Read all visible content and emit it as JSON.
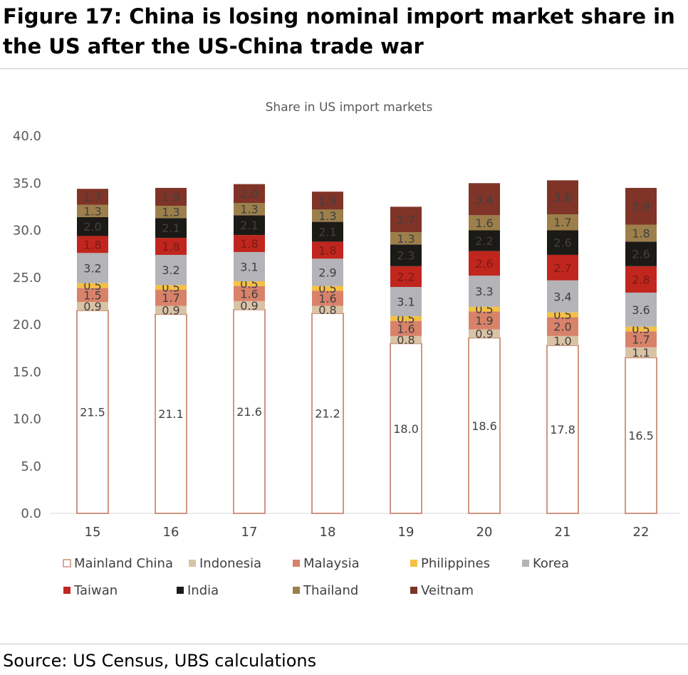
{
  "figure": {
    "title": "Figure 17: China is losing nominal import market share in the US after the US-China trade war",
    "source": "Source: US Census, UBS calculations"
  },
  "chart_data": {
    "type": "bar",
    "stacked": true,
    "title": "Share in US import markets",
    "xlabel": "",
    "ylabel": "",
    "categories": [
      "15",
      "16",
      "17",
      "18",
      "19",
      "20",
      "21",
      "22"
    ],
    "ylim": [
      0,
      40
    ],
    "yticks": [
      "0.0",
      "5.0",
      "10.0",
      "15.0",
      "20.0",
      "25.0",
      "30.0",
      "35.0",
      "40.0"
    ],
    "grid": false,
    "legend_position": "bottom",
    "series": [
      {
        "name": "Mainland China",
        "color": "#ffffff",
        "stroke": "#c0735a",
        "label_color": "#404040",
        "values": [
          21.5,
          21.1,
          21.6,
          21.2,
          18.0,
          18.6,
          17.8,
          16.5
        ],
        "labels": [
          "21.5",
          "21.1",
          "21.6",
          "21.2",
          "18.0",
          "18.6",
          "17.8",
          "16.5"
        ]
      },
      {
        "name": "Indonesia",
        "color": "#d9c3a5",
        "label_color": "#404040",
        "values": [
          0.9,
          0.9,
          0.9,
          0.8,
          0.8,
          0.9,
          1.0,
          1.1
        ],
        "labels": [
          "0.9",
          "0.9",
          "0.9",
          "0.8",
          "0.8",
          "0.9",
          "1.0",
          "1.1"
        ]
      },
      {
        "name": "Malaysia",
        "color": "#d8826a",
        "label_color": "#404040",
        "values": [
          1.5,
          1.7,
          1.6,
          1.6,
          1.6,
          1.9,
          2.0,
          1.7
        ],
        "labels": [
          "1.5",
          "1.7",
          "1.6",
          "1.6",
          "1.6",
          "1.9",
          "2.0",
          "1.7"
        ]
      },
      {
        "name": "Philippines",
        "color": "#f5c142",
        "label_color": "#404040",
        "values": [
          0.5,
          0.5,
          0.5,
          0.5,
          0.5,
          0.5,
          0.5,
          0.5
        ],
        "labels": [
          "0.5",
          "0.5",
          "0.5",
          "0.5",
          "0.5",
          "0.5",
          "0.5",
          "0.5"
        ]
      },
      {
        "name": "Korea",
        "color": "#b3b3b8",
        "label_color": "#404040",
        "values": [
          3.2,
          3.2,
          3.1,
          2.9,
          3.1,
          3.3,
          3.4,
          3.6
        ],
        "labels": [
          "3.2",
          "3.2",
          "3.1",
          "2.9",
          "3.1",
          "3.3",
          "3.4",
          "3.6"
        ]
      },
      {
        "name": "Taiwan",
        "color": "#c0261e",
        "label_color": "#7a1a14",
        "values": [
          1.8,
          1.8,
          1.8,
          1.8,
          2.2,
          2.6,
          2.7,
          2.8
        ],
        "labels": [
          "1.8",
          "1.8",
          "1.8",
          "1.8",
          "2.2",
          "2.6",
          "2.7",
          "2.8"
        ]
      },
      {
        "name": "India",
        "color": "#1c1a17",
        "label_color": "#404040",
        "values": [
          2.0,
          2.1,
          2.1,
          2.1,
          2.3,
          2.2,
          2.6,
          2.6
        ],
        "labels": [
          "2.0",
          "2.1",
          "2.1",
          "2.1",
          "2.3",
          "2.2",
          "2.6",
          "2.6"
        ]
      },
      {
        "name": "Thailand",
        "color": "#9c7f4a",
        "label_color": "#404040",
        "values": [
          1.3,
          1.3,
          1.3,
          1.3,
          1.3,
          1.6,
          1.7,
          1.8
        ],
        "labels": [
          "1.3",
          "1.3",
          "1.3",
          "1.3",
          "1.3",
          "1.6",
          "1.7",
          "1.8"
        ]
      },
      {
        "name": "Veitnam",
        "color": "#7f3427",
        "label_color": "#404040",
        "values": [
          1.7,
          1.9,
          2.0,
          1.9,
          2.7,
          3.4,
          3.6,
          3.9
        ],
        "labels": [
          "1.7",
          "1.9",
          "2.0",
          "1.9",
          "2.7",
          "3.4",
          "3.6",
          "3.9"
        ]
      }
    ]
  }
}
